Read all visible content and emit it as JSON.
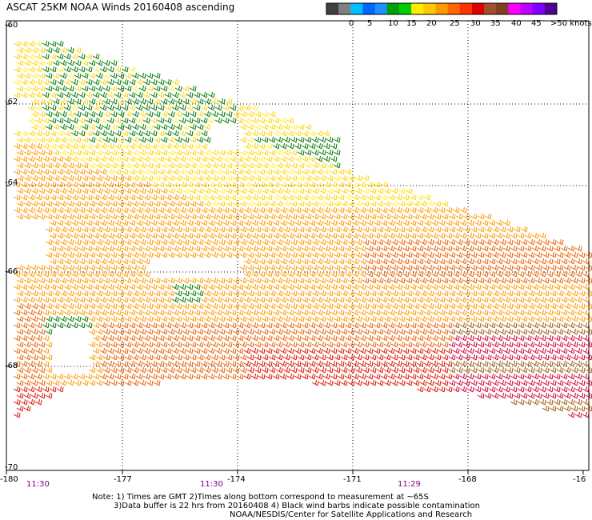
{
  "title": "ASCAT 25KM NOAA Winds 20160408 ascending",
  "legend": {
    "colors": [
      "#404040",
      "#808080",
      "#00bfff",
      "#0066ff",
      "#1e90ff",
      "#00a000",
      "#00cc00",
      "#ffee00",
      "#ffc800",
      "#ff9900",
      "#ff6600",
      "#ff3300",
      "#e00000",
      "#a05030",
      "#804020",
      "#ff00ff",
      "#c000ff",
      "#8000ff",
      "#500090"
    ],
    "labels": [
      "0",
      "5",
      "10",
      "15",
      "20",
      "25",
      "30",
      "35",
      "40",
      "45",
      ">50 knots"
    ]
  },
  "y_ticks": [
    "-60",
    "-62",
    "-64",
    "-66",
    "-68",
    "-70"
  ],
  "x_ticks": [
    "-180",
    "-177",
    "-174",
    "-171",
    "-168",
    "-16"
  ],
  "times": [
    "11:30",
    "11:30",
    "11:29"
  ],
  "notes": [
    "Note: 1) Times are GMT 2)Times along bottom correspond to measurement at ~65S",
    "3)Data buffer is 22 hrs from 20160408 4) Black wind barbs indicate possible contamination",
    "NOAA/NESDIS/Center for Satellite Applications and Research"
  ],
  "map_data": {
    "lon_range": [
      -180,
      -165
    ],
    "lat_range": [
      -70,
      -60
    ],
    "barb_colors": {
      "green": "#007a00",
      "yellow": "#ffd400",
      "light_yellow": "#ffee33",
      "orange": "#ff9900",
      "dark_orange": "#e86000",
      "red": "#dd1100",
      "crimson": "#d0003a",
      "brown": "#a05a10"
    }
  }
}
